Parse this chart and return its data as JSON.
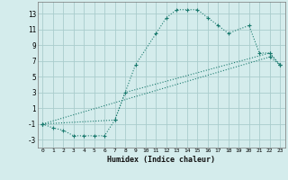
{
  "xlabel": "Humidex (Indice chaleur)",
  "bg_color": "#d4ecec",
  "grid_color": "#aacccc",
  "line_color": "#1a7a6e",
  "xlim": [
    -0.5,
    23.5
  ],
  "ylim": [
    -4.0,
    14.5
  ],
  "xticks": [
    0,
    1,
    2,
    3,
    4,
    5,
    6,
    7,
    8,
    9,
    10,
    11,
    12,
    13,
    14,
    15,
    16,
    17,
    18,
    19,
    20,
    21,
    22,
    23
  ],
  "yticks": [
    -3,
    -1,
    1,
    3,
    5,
    7,
    9,
    11,
    13
  ],
  "line1_x": [
    0,
    1,
    2,
    3,
    4,
    5,
    6,
    7,
    9,
    11,
    12,
    13,
    14,
    15,
    16,
    17,
    18,
    20,
    21,
    22,
    23
  ],
  "line1_y": [
    -1,
    -1.5,
    -1.8,
    -2.5,
    -2.5,
    -2.5,
    -2.5,
    -0.5,
    6.5,
    10.5,
    12.5,
    13.5,
    13.5,
    13.5,
    12.5,
    11.5,
    10.5,
    11.5,
    8.0,
    8.0,
    6.5
  ],
  "line2_x": [
    0,
    7,
    8,
    22,
    23
  ],
  "line2_y": [
    -1,
    -0.5,
    3.0,
    8.0,
    6.5
  ],
  "line3_x": [
    0,
    22,
    23
  ],
  "line3_y": [
    -1,
    7.5,
    6.5
  ]
}
